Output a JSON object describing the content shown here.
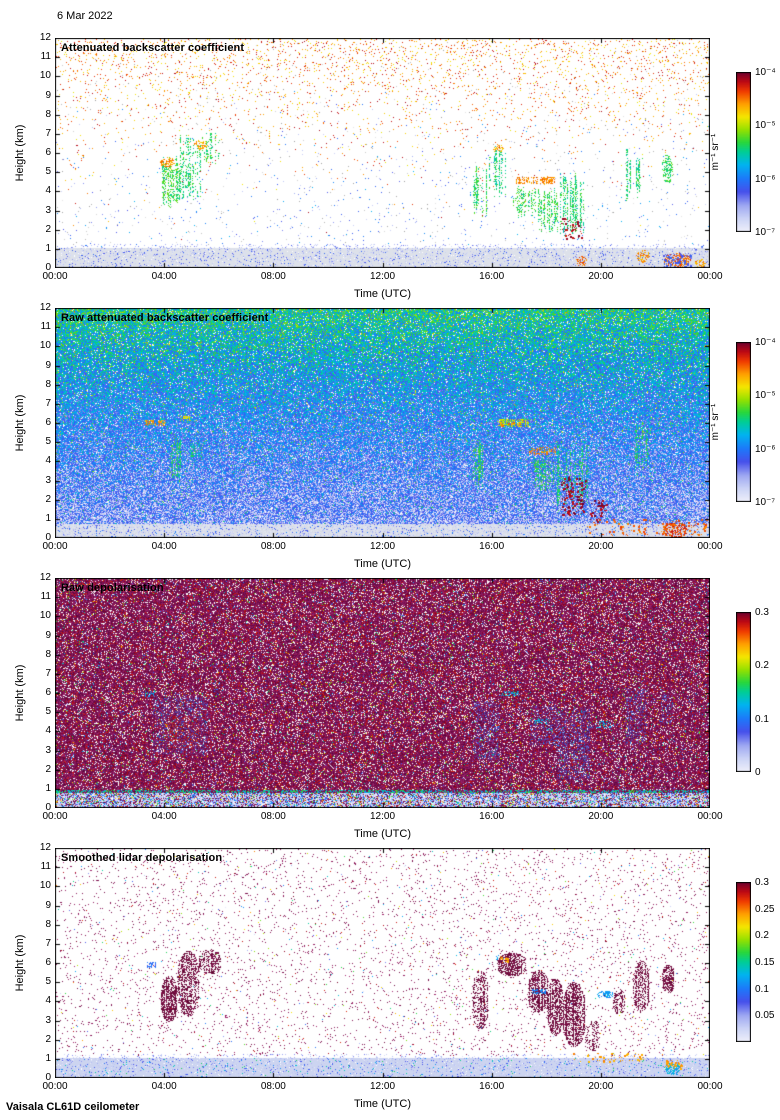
{
  "date_label": "6 Mar 2022",
  "footer_label": "Vaisala CL61D ceilometer",
  "axis": {
    "xlabel": "Time (UTC)",
    "ylabel": "Height (km)",
    "x_tick_labels": [
      "00:00",
      "04:00",
      "08:00",
      "12:00",
      "16:00",
      "20:00",
      "00:00"
    ],
    "y_tick_labels": [
      "0",
      "1",
      "2",
      "3",
      "4",
      "5",
      "6",
      "7",
      "8",
      "9",
      "10",
      "11",
      "12"
    ],
    "x_range_hours": [
      0,
      24
    ],
    "y_range_km": [
      0,
      12
    ]
  },
  "panels": [
    {
      "title": "Attenuated backscatter coefficient",
      "mode": "sparse_backscatter",
      "colorbar": {
        "scale": "log",
        "range": [
          1e-07,
          0.0001
        ],
        "tick_labels": [
          "10⁻⁴",
          "10⁻⁵",
          "10⁻⁶",
          "10⁻⁷"
        ],
        "tick_values": [
          0.0001,
          1e-05,
          1e-06,
          1e-07
        ],
        "unit": "m⁻¹ sr⁻¹"
      }
    },
    {
      "title": "Raw attenuated backscatter coefficient",
      "mode": "dense_backscatter",
      "colorbar": {
        "scale": "log",
        "range": [
          1e-07,
          0.0001
        ],
        "tick_labels": [
          "10⁻⁴",
          "10⁻⁵",
          "10⁻⁶",
          "10⁻⁷"
        ],
        "tick_values": [
          0.0001,
          1e-05,
          1e-06,
          1e-07
        ],
        "unit": "m⁻¹ sr⁻¹"
      }
    },
    {
      "title": "Raw depolarisation",
      "mode": "dense_depol",
      "colorbar": {
        "scale": "linear",
        "range": [
          0,
          0.3
        ],
        "tick_labels": [
          "0.3",
          "0.2",
          "0.1",
          "0"
        ],
        "tick_values": [
          0.3,
          0.2,
          0.1,
          0
        ],
        "unit": ""
      }
    },
    {
      "title": "Smoothed lidar depolarisation",
      "mode": "sparse_depol",
      "colorbar": {
        "scale": "linear",
        "range": [
          0,
          0.3
        ],
        "tick_labels": [
          "0.3",
          "0.25",
          "0.2",
          "0.15",
          "0.1",
          "0.05"
        ],
        "tick_values": [
          0.3,
          0.25,
          0.2,
          0.15,
          0.1,
          0.05
        ],
        "unit": ""
      }
    }
  ],
  "chart_data": [
    {
      "type": "heatmap",
      "title": "Attenuated backscatter coefficient",
      "xlabel": "Time (UTC)",
      "ylabel": "Height (km)",
      "x_range_hours": [
        0,
        24
      ],
      "y_range_km": [
        0,
        12
      ],
      "colorbar": {
        "scale": "log",
        "min": 1e-07,
        "max": 0.0001,
        "unit": "m-1 sr-1"
      },
      "surface_layer": {
        "h0": 0,
        "h1": 1,
        "description": "grey near-surface aerosol layer across full day"
      },
      "background": "white with warm speckle noise increasing toward 12 km, sparse blue speckles below 7 km",
      "features": [
        {
          "kind": "streaks",
          "t0": 3.95,
          "t1": 4.55,
          "h0": 2.9,
          "h1": 6.0,
          "v": 0.56,
          "density": 0.5
        },
        {
          "kind": "streaks",
          "t0": 4.55,
          "t1": 5.35,
          "h0": 3.4,
          "h1": 7.0,
          "v": 0.53,
          "density": 0.45
        },
        {
          "kind": "streaks",
          "t0": 5.4,
          "t1": 6.1,
          "h0": 5.3,
          "h1": 7.1,
          "v": 0.55,
          "density": 0.25
        },
        {
          "kind": "blob",
          "t0": 3.85,
          "t1": 4.4,
          "h0": 5.25,
          "h1": 5.75,
          "v": 0.8,
          "density": 0.55
        },
        {
          "kind": "blob",
          "t0": 5.1,
          "t1": 5.6,
          "h0": 6.2,
          "h1": 6.65,
          "v": 0.78,
          "density": 0.5
        },
        {
          "kind": "streaks",
          "t0": 15.35,
          "t1": 15.8,
          "h0": 2.5,
          "h1": 5.6,
          "v": 0.55,
          "density": 0.5
        },
        {
          "kind": "streaks",
          "t0": 15.9,
          "t1": 16.5,
          "h0": 3.6,
          "h1": 6.4,
          "v": 0.52,
          "density": 0.45
        },
        {
          "kind": "blob",
          "t0": 16.05,
          "t1": 16.45,
          "h0": 6.05,
          "h1": 6.45,
          "v": 0.78,
          "density": 0.4
        },
        {
          "kind": "dash",
          "t0": 16.9,
          "t1": 18.35,
          "h0": 4.35,
          "h1": 4.7,
          "v": 0.82,
          "density": 0.55
        },
        {
          "kind": "streaks",
          "t0": 16.8,
          "t1": 17.6,
          "h0": 2.6,
          "h1": 4.3,
          "v": 0.56,
          "density": 0.4
        },
        {
          "kind": "streaks",
          "t0": 17.7,
          "t1": 18.4,
          "h0": 1.8,
          "h1": 4.2,
          "v": 0.55,
          "density": 0.45
        },
        {
          "kind": "streaks",
          "t0": 18.45,
          "t1": 19.35,
          "h0": 1.6,
          "h1": 5.2,
          "v": 0.53,
          "density": 0.5
        },
        {
          "kind": "spots",
          "t0": 18.55,
          "t1": 19.3,
          "h0": 1.5,
          "h1": 2.6,
          "v": 0.95,
          "density": 0.12
        },
        {
          "kind": "streaks",
          "t0": 20.85,
          "t1": 21.55,
          "h0": 3.4,
          "h1": 6.3,
          "v": 0.53,
          "density": 0.5
        },
        {
          "kind": "blob",
          "t0": 22.25,
          "t1": 22.65,
          "h0": 4.4,
          "h1": 5.9,
          "v": 0.55,
          "density": 0.4
        },
        {
          "kind": "blob",
          "t0": 19.1,
          "t1": 19.5,
          "h0": 0.1,
          "h1": 0.6,
          "v": 0.85,
          "density": 0.5
        },
        {
          "kind": "blob",
          "t0": 21.3,
          "t1": 21.8,
          "h0": 0.3,
          "h1": 0.95,
          "v": 0.8,
          "density": 0.4
        },
        {
          "kind": "blob",
          "t0": 22.3,
          "t1": 23.3,
          "h0": 0.05,
          "h1": 0.75,
          "v": 0.85,
          "density": 0.6
        },
        {
          "kind": "spots",
          "t0": 22.3,
          "t1": 23.3,
          "h0": 0.05,
          "h1": 0.75,
          "v": 0.25,
          "density": 0.2
        },
        {
          "kind": "blob",
          "t0": 23.45,
          "t1": 23.85,
          "h0": 0.05,
          "h1": 0.45,
          "v": 0.8,
          "density": 0.45
        }
      ]
    },
    {
      "type": "heatmap",
      "title": "Raw attenuated backscatter coefficient",
      "xlabel": "Time (UTC)",
      "ylabel": "Height (km)",
      "x_range_hours": [
        0,
        24
      ],
      "y_range_km": [
        0,
        12
      ],
      "colorbar": {
        "scale": "log",
        "min": 1e-07,
        "max": 0.0001,
        "unit": "m-1 sr-1"
      },
      "surface_layer": {
        "h0": 0,
        "h1": 0.78,
        "description": "light grey near-surface band"
      },
      "background": "dense blue noise brightening to green-yellow toward 12 km",
      "features": [
        {
          "kind": "dash",
          "t0": 3.3,
          "t1": 4.05,
          "h0": 5.85,
          "h1": 6.15,
          "v": 0.8,
          "density": 0.6
        },
        {
          "kind": "dash",
          "t0": 4.6,
          "t1": 5.05,
          "h0": 6.1,
          "h1": 6.35,
          "v": 0.7,
          "density": 0.5
        },
        {
          "kind": "streaks",
          "t0": 4.15,
          "t1": 4.6,
          "h0": 2.8,
          "h1": 5.6,
          "v": 0.55,
          "density": 0.55
        },
        {
          "kind": "streaks",
          "t0": 4.95,
          "t1": 5.35,
          "h0": 3.9,
          "h1": 5.2,
          "v": 0.52,
          "density": 0.4
        },
        {
          "kind": "streaks",
          "t0": 15.3,
          "t1": 15.7,
          "h0": 2.4,
          "h1": 5.6,
          "v": 0.55,
          "density": 0.55
        },
        {
          "kind": "dash",
          "t0": 16.25,
          "t1": 17.35,
          "h0": 5.8,
          "h1": 6.2,
          "v": 0.68,
          "density": 0.55
        },
        {
          "kind": "spots",
          "t0": 16.3,
          "t1": 17.2,
          "h0": 5.85,
          "h1": 6.15,
          "v": 0.82,
          "density": 0.1
        },
        {
          "kind": "dash",
          "t0": 17.35,
          "t1": 18.35,
          "h0": 4.3,
          "h1": 4.7,
          "v": 0.82,
          "density": 0.55
        },
        {
          "kind": "streaks",
          "t0": 17.5,
          "t1": 18.3,
          "h0": 2.4,
          "h1": 4.3,
          "v": 0.55,
          "density": 0.45
        },
        {
          "kind": "streaks",
          "t0": 18.4,
          "t1": 19.5,
          "h0": 1.4,
          "h1": 5.0,
          "v": 0.53,
          "density": 0.5
        },
        {
          "kind": "spots",
          "t0": 18.55,
          "t1": 19.45,
          "h0": 1.2,
          "h1": 3.2,
          "v": 0.97,
          "density": 0.15
        },
        {
          "kind": "spots",
          "t0": 19.6,
          "t1": 20.2,
          "h0": 0.8,
          "h1": 2.0,
          "v": 0.97,
          "density": 0.12
        },
        {
          "kind": "streaks",
          "t0": 21.25,
          "t1": 21.7,
          "h0": 3.4,
          "h1": 6.1,
          "v": 0.54,
          "density": 0.5
        },
        {
          "kind": "spots",
          "t0": 19.5,
          "t1": 23.9,
          "h0": 0.1,
          "h1": 1.0,
          "v": 0.85,
          "density": 0.06
        },
        {
          "kind": "blob",
          "t0": 22.3,
          "t1": 23.2,
          "h0": 0.05,
          "h1": 0.8,
          "v": 0.88,
          "density": 0.45
        }
      ]
    },
    {
      "type": "heatmap",
      "title": "Raw depolarisation",
      "xlabel": "Time (UTC)",
      "ylabel": "Height (km)",
      "x_range_hours": [
        0,
        24
      ],
      "y_range_km": [
        0,
        12
      ],
      "colorbar": {
        "scale": "linear",
        "min": 0,
        "max": 0.3,
        "unit": ""
      },
      "surface_layer": {
        "h0": 0,
        "h1": 0.8,
        "description": "light blue-grey speckled near-surface band"
      },
      "background": "dense magenta-purple noise with white speckles over full field",
      "features": [
        {
          "kind": "haze",
          "t0": 3.6,
          "t1": 5.6,
          "h0": 2.8,
          "h1": 5.8,
          "v": 0.3,
          "density": 0.3,
          "alpha": 0.45
        },
        {
          "kind": "haze",
          "t0": 4.1,
          "t1": 5.3,
          "h0": 3.1,
          "h1": 4.9,
          "v": 0.92,
          "density": 0.25,
          "alpha": 0.55
        },
        {
          "kind": "dash",
          "t0": 3.3,
          "t1": 3.65,
          "h0": 5.8,
          "h1": 6.1,
          "v": 0.4,
          "density": 0.5
        },
        {
          "kind": "haze",
          "t0": 15.3,
          "t1": 16.3,
          "h0": 2.5,
          "h1": 5.6,
          "v": 0.3,
          "density": 0.3,
          "alpha": 0.5
        },
        {
          "kind": "haze",
          "t0": 16.3,
          "t1": 17.3,
          "h0": 5.3,
          "h1": 6.4,
          "v": 0.95,
          "density": 0.3,
          "alpha": 0.6
        },
        {
          "kind": "dash",
          "t0": 16.35,
          "t1": 17.0,
          "h0": 5.85,
          "h1": 6.1,
          "v": 0.42,
          "density": 0.35
        },
        {
          "kind": "haze",
          "t0": 17.4,
          "t1": 18.4,
          "h0": 3.3,
          "h1": 5.3,
          "v": 0.3,
          "density": 0.3,
          "alpha": 0.5
        },
        {
          "kind": "dash",
          "t0": 17.5,
          "t1": 18.1,
          "h0": 4.35,
          "h1": 4.6,
          "v": 0.42,
          "density": 0.4
        },
        {
          "kind": "haze",
          "t0": 18.4,
          "t1": 19.6,
          "h0": 1.5,
          "h1": 5.2,
          "v": 0.3,
          "density": 0.35,
          "alpha": 0.5
        },
        {
          "kind": "dash",
          "t0": 19.85,
          "t1": 20.45,
          "h0": 4.15,
          "h1": 4.5,
          "v": 0.42,
          "density": 0.4
        },
        {
          "kind": "haze",
          "t0": 20.9,
          "t1": 21.7,
          "h0": 3.3,
          "h1": 6.2,
          "v": 0.3,
          "density": 0.3,
          "alpha": 0.5
        },
        {
          "kind": "haze",
          "t0": 22.2,
          "t1": 22.65,
          "h0": 4.4,
          "h1": 5.9,
          "v": 0.3,
          "density": 0.3,
          "alpha": 0.5
        }
      ]
    },
    {
      "type": "heatmap",
      "title": "Smoothed lidar depolarisation",
      "xlabel": "Time (UTC)",
      "ylabel": "Height (km)",
      "x_range_hours": [
        0,
        24
      ],
      "y_range_km": [
        0,
        12
      ],
      "colorbar": {
        "scale": "linear",
        "min": 0,
        "max": 0.3,
        "unit": ""
      },
      "surface_layer": {
        "h0": 0,
        "h1": 1,
        "description": "light periwinkle speckled near-surface band"
      },
      "background": "white with sparse dark-purple speckle noise",
      "features": [
        {
          "kind": "blobdense",
          "t0": 3.9,
          "t1": 4.45,
          "h0": 2.9,
          "h1": 5.3,
          "maroon": true,
          "density": 0.6
        },
        {
          "kind": "blobdense",
          "t0": 4.5,
          "t1": 5.25,
          "h0": 3.2,
          "h1": 6.6,
          "maroon": true,
          "density": 0.55
        },
        {
          "kind": "blobdense",
          "t0": 5.3,
          "t1": 6.05,
          "h0": 5.4,
          "h1": 6.7,
          "maroon": true,
          "density": 0.5
        },
        {
          "kind": "dash",
          "t0": 3.35,
          "t1": 3.7,
          "h0": 5.75,
          "h1": 6.05,
          "v": 0.3,
          "density": 0.6
        },
        {
          "kind": "blobdense",
          "t0": 15.3,
          "t1": 15.85,
          "h0": 2.5,
          "h1": 5.6,
          "maroon": true,
          "density": 0.5
        },
        {
          "kind": "blobdense",
          "t0": 16.2,
          "t1": 17.25,
          "h0": 5.3,
          "h1": 6.5,
          "maroon": true,
          "density": 0.55
        },
        {
          "kind": "spots",
          "t0": 16.3,
          "t1": 16.65,
          "h0": 6.0,
          "h1": 6.35,
          "v": 0.8,
          "density": 0.25
        },
        {
          "kind": "dash",
          "t0": 16.15,
          "t1": 16.45,
          "h0": 6.15,
          "h1": 6.4,
          "v": 0.38,
          "density": 0.4
        },
        {
          "kind": "blobdense",
          "t0": 17.35,
          "t1": 18.05,
          "h0": 3.4,
          "h1": 5.6,
          "maroon": true,
          "density": 0.55
        },
        {
          "kind": "dash",
          "t0": 17.5,
          "t1": 18.05,
          "h0": 4.35,
          "h1": 4.6,
          "v": 0.35,
          "density": 0.5
        },
        {
          "kind": "blobdense",
          "t0": 18.05,
          "t1": 18.6,
          "h0": 2.2,
          "h1": 5.2,
          "maroon": true,
          "density": 0.55
        },
        {
          "kind": "blobdense",
          "t0": 18.65,
          "t1": 19.4,
          "h0": 1.6,
          "h1": 5.0,
          "maroon": true,
          "density": 0.6
        },
        {
          "kind": "blobdense",
          "t0": 19.45,
          "t1": 19.95,
          "h0": 1.4,
          "h1": 3.0,
          "maroon": true,
          "density": 0.3
        },
        {
          "kind": "dash",
          "t0": 19.85,
          "t1": 20.45,
          "h0": 4.15,
          "h1": 4.5,
          "v": 0.38,
          "density": 0.55
        },
        {
          "kind": "blobdense",
          "t0": 20.45,
          "t1": 20.85,
          "h0": 3.3,
          "h1": 4.6,
          "maroon": true,
          "density": 0.45
        },
        {
          "kind": "blobdense",
          "t0": 21.2,
          "t1": 21.75,
          "h0": 3.4,
          "h1": 6.1,
          "maroon": true,
          "density": 0.55
        },
        {
          "kind": "blobdense",
          "t0": 22.25,
          "t1": 22.65,
          "h0": 4.4,
          "h1": 5.9,
          "maroon": true,
          "density": 0.5
        },
        {
          "kind": "spots",
          "t0": 18.9,
          "t1": 21.6,
          "h0": 0.85,
          "h1": 1.3,
          "v": 0.8,
          "density": 0.08
        },
        {
          "kind": "blob",
          "t0": 22.35,
          "t1": 22.9,
          "h0": 0.15,
          "h1": 0.8,
          "v": 0.42,
          "density": 0.6
        },
        {
          "kind": "spots",
          "t0": 22.35,
          "t1": 22.95,
          "h0": 0.5,
          "h1": 0.95,
          "v": 0.8,
          "density": 0.3
        }
      ]
    }
  ]
}
